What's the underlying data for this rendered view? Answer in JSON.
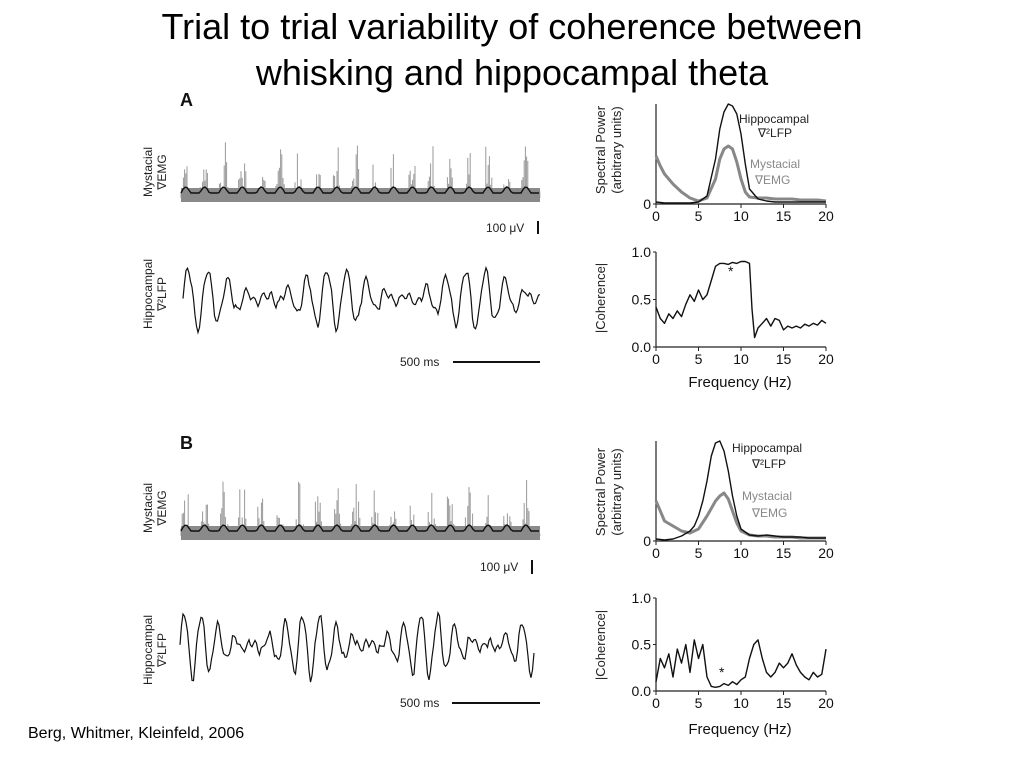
{
  "slide": {
    "title_line1": "Trial to trial variability of coherence between",
    "title_line2": "whisking and hippocampal theta",
    "citation": "Berg, Whitmer, Kleinfeld, 2006"
  },
  "panels": [
    {
      "letter": "A",
      "emg_label_1": "Mystacial",
      "emg_label_2": "∇EMG",
      "lfp_label_1": "Hippocampal",
      "lfp_label_2": "∇²LFP",
      "emg_scale": "100 μV",
      "time_scale": "500 ms",
      "power_ylabel_1": "Spectral Power",
      "power_ylabel_2": "(arbitrary units)",
      "coh_ylabel": "|Coherence|",
      "xlabel": "Frequency (Hz)",
      "legend_lfp_1": "Hippocampal",
      "legend_lfp_2": "∇²LFP",
      "legend_emg_1": "Mystacial",
      "legend_emg_2": "∇EMG",
      "star": "*"
    },
    {
      "letter": "B",
      "emg_label_1": "Mystacial",
      "emg_label_2": "∇EMG",
      "lfp_label_1": "Hippocampal",
      "lfp_label_2": "∇²LFP",
      "emg_scale": "100 μV",
      "time_scale": "500 ms",
      "power_ylabel_1": "Spectral Power",
      "power_ylabel_2": "(arbitrary units)",
      "coh_ylabel": "|Coherence|",
      "xlabel": "Frequency (Hz)",
      "legend_lfp_1": "Hippocampal",
      "legend_lfp_2": "∇²LFP",
      "legend_emg_1": "Mystacial",
      "legend_emg_2": "∇EMG",
      "star": "*"
    }
  ],
  "chart_data": [
    {
      "panel": "A",
      "type": "line",
      "xlabel": "",
      "ylabel": "Spectral Power (arbitrary units)",
      "xlim": [
        0,
        20
      ],
      "xticks": [
        0,
        5,
        10,
        15,
        20
      ],
      "yticks": [
        0
      ],
      "series": [
        {
          "name": "Hippocampal ∇²LFP",
          "color": "#111111",
          "x": [
            0,
            1,
            2,
            3,
            4,
            5,
            6,
            7,
            7.5,
            8,
            8.5,
            9,
            9.5,
            10,
            10.5,
            11,
            12,
            13,
            14,
            15,
            16,
            17,
            18,
            19,
            20
          ],
          "y": [
            0.02,
            0.01,
            0.01,
            0.01,
            0.01,
            0.02,
            0.08,
            0.45,
            0.75,
            0.92,
            1.0,
            0.98,
            0.9,
            0.7,
            0.4,
            0.15,
            0.05,
            0.03,
            0.02,
            0.02,
            0.02,
            0.02,
            0.02,
            0.02,
            0.02
          ]
        },
        {
          "name": "Mystacial ∇EMG",
          "color": "#888888",
          "x": [
            0,
            0.5,
            1,
            2,
            3,
            4,
            5,
            6,
            7,
            7.5,
            8,
            8.5,
            9,
            9.5,
            10,
            10.5,
            11,
            12,
            13,
            14,
            15,
            16,
            17,
            18,
            19,
            20
          ],
          "y": [
            0.48,
            0.38,
            0.3,
            0.2,
            0.12,
            0.06,
            0.03,
            0.06,
            0.25,
            0.45,
            0.55,
            0.58,
            0.55,
            0.42,
            0.25,
            0.12,
            0.07,
            0.06,
            0.06,
            0.05,
            0.05,
            0.05,
            0.04,
            0.04,
            0.04,
            0.03
          ]
        }
      ]
    },
    {
      "panel": "A",
      "type": "line",
      "xlabel": "Frequency (Hz)",
      "ylabel": "|Coherence|",
      "xlim": [
        0,
        20
      ],
      "ylim": [
        0,
        1.0
      ],
      "xticks": [
        0,
        5,
        10,
        15,
        20
      ],
      "yticks": [
        0.0,
        0.5,
        1.0
      ],
      "series": [
        {
          "name": "",
          "color": "#111111",
          "x": [
            0,
            0.5,
            1,
            1.5,
            2,
            2.5,
            3,
            3.5,
            4,
            4.5,
            5,
            5.5,
            6,
            6.5,
            7,
            7.5,
            8,
            8.5,
            9,
            9.5,
            10,
            10.5,
            11,
            11.3,
            11.6,
            12,
            12.5,
            13,
            13.5,
            14,
            14.5,
            15,
            15.5,
            16,
            16.5,
            17,
            17.5,
            18,
            18.5,
            19,
            19.5,
            20
          ],
          "y": [
            0.42,
            0.3,
            0.25,
            0.35,
            0.3,
            0.38,
            0.32,
            0.45,
            0.55,
            0.48,
            0.6,
            0.5,
            0.55,
            0.7,
            0.85,
            0.88,
            0.88,
            0.87,
            0.89,
            0.88,
            0.9,
            0.9,
            0.88,
            0.4,
            0.1,
            0.2,
            0.25,
            0.3,
            0.22,
            0.3,
            0.28,
            0.18,
            0.22,
            0.2,
            0.22,
            0.2,
            0.24,
            0.22,
            0.25,
            0.23,
            0.28,
            0.25
          ]
        }
      ]
    },
    {
      "panel": "B",
      "type": "line",
      "xlabel": "",
      "ylabel": "Spectral Power (arbitrary units)",
      "xlim": [
        0,
        20
      ],
      "xticks": [
        0,
        5,
        10,
        15,
        20
      ],
      "yticks": [
        0
      ],
      "series": [
        {
          "name": "Hippocampal ∇²LFP",
          "color": "#111111",
          "x": [
            0,
            1,
            2,
            3,
            4,
            4.5,
            5,
            5.5,
            6,
            6.5,
            7,
            7.5,
            8,
            8.5,
            9,
            9.5,
            10,
            11,
            12,
            13,
            14,
            15,
            16,
            17,
            18,
            19,
            20
          ],
          "y": [
            0.02,
            0.01,
            0.02,
            0.05,
            0.1,
            0.15,
            0.25,
            0.4,
            0.6,
            0.85,
            0.98,
            1.0,
            0.9,
            0.7,
            0.45,
            0.25,
            0.12,
            0.06,
            0.05,
            0.06,
            0.05,
            0.04,
            0.04,
            0.04,
            0.03,
            0.03,
            0.03
          ]
        },
        {
          "name": "Mystacial ∇EMG",
          "color": "#888888",
          "x": [
            0,
            0.5,
            1,
            2,
            3,
            4,
            5,
            6,
            7,
            7.5,
            8,
            8.5,
            9,
            9.5,
            10,
            11,
            12,
            13,
            14,
            15,
            16,
            17,
            18,
            19,
            20
          ],
          "y": [
            0.4,
            0.3,
            0.2,
            0.15,
            0.1,
            0.08,
            0.12,
            0.25,
            0.4,
            0.45,
            0.48,
            0.42,
            0.3,
            0.18,
            0.1,
            0.06,
            0.05,
            0.05,
            0.04,
            0.04,
            0.04,
            0.03,
            0.03,
            0.03,
            0.03
          ]
        }
      ]
    },
    {
      "panel": "B",
      "type": "line",
      "xlabel": "Frequency (Hz)",
      "ylabel": "|Coherence|",
      "xlim": [
        0,
        20
      ],
      "ylim": [
        0,
        1.0
      ],
      "xticks": [
        0,
        5,
        10,
        15,
        20
      ],
      "yticks": [
        0.0,
        0.5,
        1.0
      ],
      "series": [
        {
          "name": "",
          "color": "#111111",
          "x": [
            0,
            0.5,
            1,
            1.5,
            2,
            2.5,
            3,
            3.5,
            4,
            4.5,
            5,
            5.5,
            6,
            6.5,
            7,
            7.5,
            8,
            8.5,
            9,
            9.5,
            10,
            10.5,
            11,
            11.5,
            12,
            12.5,
            13,
            13.5,
            14,
            14.5,
            15,
            15.5,
            16,
            16.5,
            17,
            17.5,
            18,
            18.5,
            19,
            19.5,
            20
          ],
          "y": [
            0.1,
            0.35,
            0.25,
            0.4,
            0.15,
            0.45,
            0.3,
            0.5,
            0.2,
            0.55,
            0.35,
            0.5,
            0.15,
            0.05,
            0.04,
            0.05,
            0.08,
            0.06,
            0.1,
            0.07,
            0.12,
            0.15,
            0.35,
            0.5,
            0.55,
            0.35,
            0.2,
            0.15,
            0.2,
            0.3,
            0.25,
            0.3,
            0.4,
            0.28,
            0.2,
            0.15,
            0.12,
            0.2,
            0.15,
            0.18,
            0.45
          ]
        }
      ]
    }
  ]
}
